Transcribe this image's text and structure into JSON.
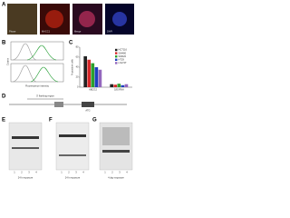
{
  "panels": {
    "A": {
      "label": "A",
      "captions": [
        "Phase",
        "MACC1",
        "Merge",
        "DAPI"
      ]
    },
    "B": {
      "label": "B",
      "x_label": "Fluorescence intensity",
      "y_label": "Counts"
    },
    "C": {
      "label": "C",
      "y_label": "% positive cells",
      "ylim": [
        0,
        80
      ],
      "yticks": [
        0,
        20,
        40,
        60,
        80
      ],
      "categories": [
        "ABCG2",
        "18S RNA"
      ],
      "series": [
        {
          "name": "HCT116",
          "color": "#222222",
          "values": [
            62,
            6
          ]
        },
        {
          "name": "SW480",
          "color": "#d62728",
          "values": [
            55,
            5
          ]
        },
        {
          "name": "SW620",
          "color": "#2ca02c",
          "values": [
            48,
            7
          ]
        },
        {
          "name": "HT29",
          "color": "#1f3fbf",
          "values": [
            40,
            4
          ]
        },
        {
          "name": "LS174T",
          "color": "#9467bd",
          "values": [
            35,
            6
          ]
        }
      ]
    },
    "D": {
      "label": "D",
      "notes": [
        "5' flanking region",
        "ATG"
      ]
    },
    "E": {
      "label": "E",
      "lanes": [
        "1",
        "2",
        "3",
        "4"
      ],
      "caption": "24 h exposure"
    },
    "F": {
      "label": "F",
      "lanes": [
        "1",
        "2",
        "3",
        "4"
      ],
      "caption": "24 h exposure"
    },
    "G": {
      "label": "G",
      "lanes": [
        "1",
        "2",
        "3",
        "4"
      ],
      "caption": "4 day exposure"
    }
  }
}
